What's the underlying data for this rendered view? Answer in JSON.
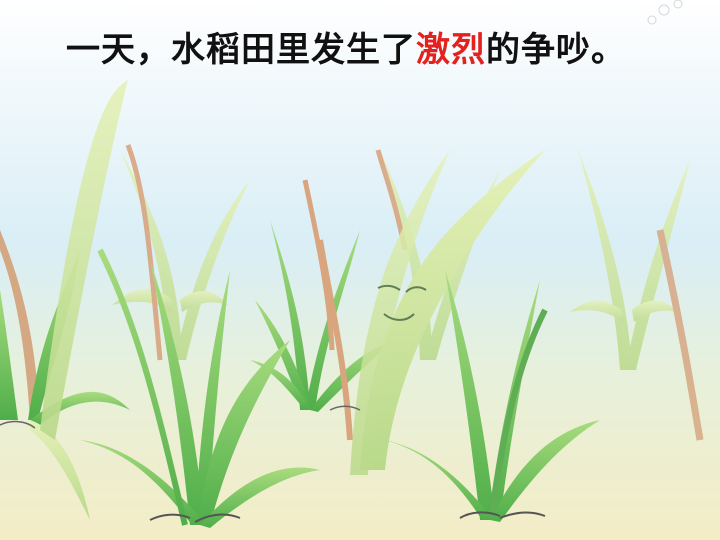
{
  "caption": {
    "text_before": "一天，水稻田里发生了",
    "highlight": "激烈",
    "text_after": "的争吵。",
    "highlight_color": "#e3211f"
  },
  "scene": {
    "icons": [
      "rice-plant",
      "smiling-rice-leaf",
      "sparkle"
    ]
  }
}
